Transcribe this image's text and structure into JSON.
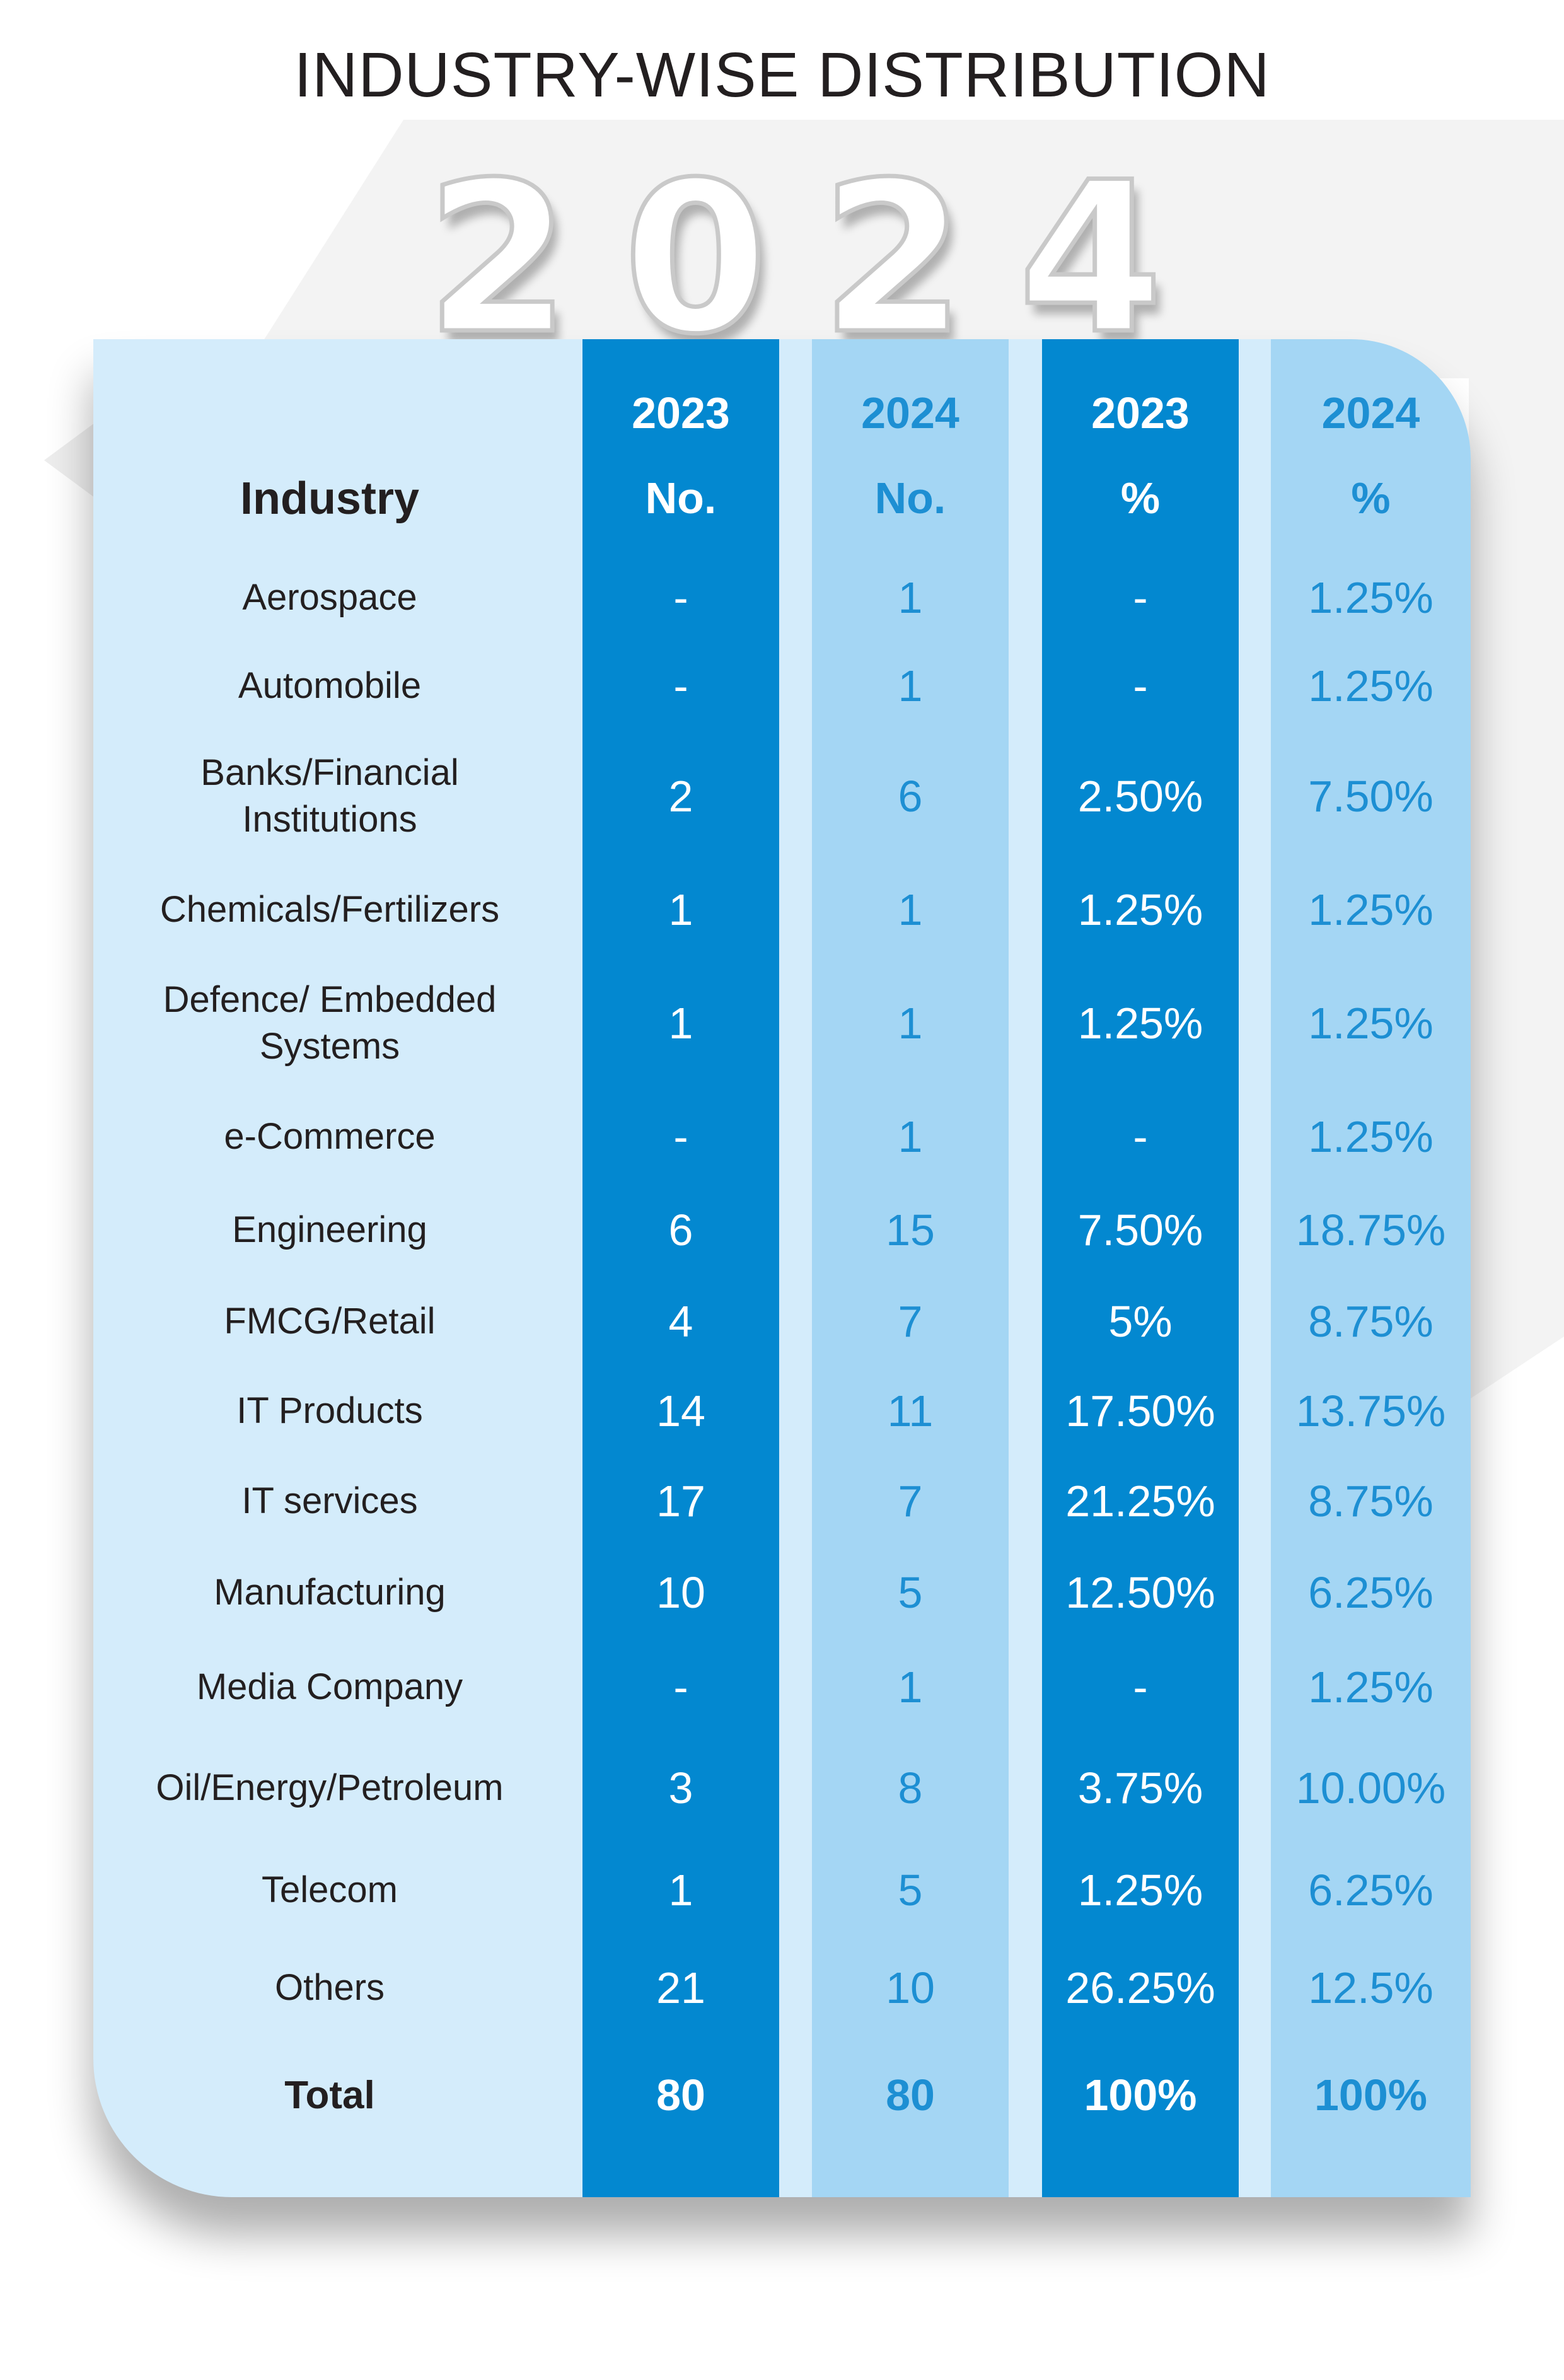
{
  "title": "INDUSTRY-WISE DISTRIBUTION",
  "year_digits": [
    "2",
    "0",
    "2",
    "4"
  ],
  "colors": {
    "dark_column": "#0388d0",
    "light_column": "#a4d6f4",
    "card_background": "#d4ecfb",
    "accent_text": "#1d8fd3"
  },
  "table": {
    "headers": {
      "industry": "Industry",
      "col1": {
        "year": "2023",
        "label": "No."
      },
      "col2": {
        "year": "2024",
        "label": "No."
      },
      "col3": {
        "year": "2023",
        "label": "%"
      },
      "col4": {
        "year": "2024",
        "label": "%"
      }
    },
    "rows": [
      {
        "industry": "Aerospace",
        "no_2023": "-",
        "no_2024": "1",
        "pct_2023": "-",
        "pct_2024": "1.25%"
      },
      {
        "industry": "Automobile",
        "no_2023": "-",
        "no_2024": "1",
        "pct_2023": "-",
        "pct_2024": "1.25%"
      },
      {
        "industry": "Banks/Financial Institutions",
        "no_2023": "2",
        "no_2024": "6",
        "pct_2023": "2.50%",
        "pct_2024": "7.50%"
      },
      {
        "industry": "Chemicals/Fertilizers",
        "no_2023": "1",
        "no_2024": "1",
        "pct_2023": "1.25%",
        "pct_2024": "1.25%"
      },
      {
        "industry": "Defence/ Embedded Systems",
        "no_2023": "1",
        "no_2024": "1",
        "pct_2023": "1.25%",
        "pct_2024": "1.25%"
      },
      {
        "industry": "e-Commerce",
        "no_2023": "-",
        "no_2024": "1",
        "pct_2023": "-",
        "pct_2024": "1.25%"
      },
      {
        "industry": "Engineering",
        "no_2023": "6",
        "no_2024": "15",
        "pct_2023": "7.50%",
        "pct_2024": "18.75%"
      },
      {
        "industry": "FMCG/Retail",
        "no_2023": "4",
        "no_2024": "7",
        "pct_2023": "5%",
        "pct_2024": "8.75%"
      },
      {
        "industry": "IT Products",
        "no_2023": "14",
        "no_2024": "11",
        "pct_2023": "17.50%",
        "pct_2024": "13.75%"
      },
      {
        "industry": "IT services",
        "no_2023": "17",
        "no_2024": "7",
        "pct_2023": "21.25%",
        "pct_2024": "8.75%"
      },
      {
        "industry": "Manufacturing",
        "no_2023": "10",
        "no_2024": "5",
        "pct_2023": "12.50%",
        "pct_2024": "6.25%"
      },
      {
        "industry": "Media Company",
        "no_2023": "-",
        "no_2024": "1",
        "pct_2023": "-",
        "pct_2024": "1.25%"
      },
      {
        "industry": "Oil/Energy/Petroleum",
        "no_2023": "3",
        "no_2024": "8",
        "pct_2023": "3.75%",
        "pct_2024": "10.00%"
      },
      {
        "industry": "Telecom",
        "no_2023": "1",
        "no_2024": "5",
        "pct_2023": "1.25%",
        "pct_2024": "6.25%"
      },
      {
        "industry": "Others",
        "no_2023": "21",
        "no_2024": "10",
        "pct_2023": "26.25%",
        "pct_2024": "12.5%"
      }
    ],
    "total": {
      "label": "Total",
      "no_2023": "80",
      "no_2024": "80",
      "pct_2023": "100%",
      "pct_2024": "100%"
    }
  }
}
